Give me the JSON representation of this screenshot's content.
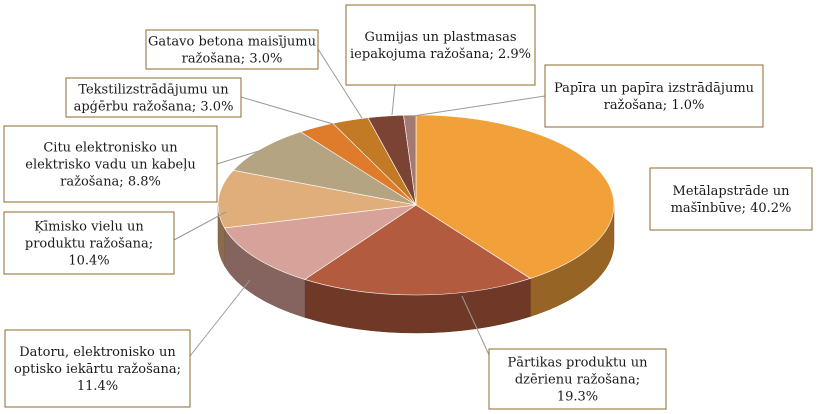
{
  "chart_data": {
    "type": "pie",
    "title": "",
    "legend": "none",
    "slices": [
      {
        "label_lines": [
          "Metālapstrāde un",
          "mašīnbūve; 40.2%"
        ],
        "value": 40.2,
        "color": "#f2a13a"
      },
      {
        "label_lines": [
          "Pārtikas produktu un",
          "dzērienu ražošana;",
          "19.3%"
        ],
        "value": 19.3,
        "color": "#b35b3f"
      },
      {
        "label_lines": [
          "Datoru, elektronisko un",
          "optisko iekārtu ražošana;",
          "11.4%"
        ],
        "value": 11.4,
        "color": "#d7a29a"
      },
      {
        "label_lines": [
          "Ķīmisko vielu un",
          "produktu ražošana;",
          "10.4%"
        ],
        "value": 10.4,
        "color": "#dfae7b"
      },
      {
        "label_lines": [
          "Citu elektronisko un",
          "elektrisko vadu un kabeļu",
          "ražošana; 8.8%"
        ],
        "value": 8.8,
        "color": "#b4a482"
      },
      {
        "label_lines": [
          "Tekstilizstrādājumu un",
          "apģērbu ražošana; 3.0%"
        ],
        "value": 3.0,
        "color": "#df7c2b"
      },
      {
        "label_lines": [
          "Gatavo betona maisījumu",
          "ražošana; 3.0%"
        ],
        "value": 3.0,
        "color": "#c27a24"
      },
      {
        "label_lines": [
          "Gumijas un plastmasas",
          "iepakojuma ražošana; 2.9%"
        ],
        "value": 2.9,
        "color": "#7b4334"
      },
      {
        "label_lines": [
          "Papīra un papīra izstrādājumu",
          "ražošana; 1.0%"
        ],
        "value": 1.0,
        "color": "#a27a72"
      }
    ]
  }
}
